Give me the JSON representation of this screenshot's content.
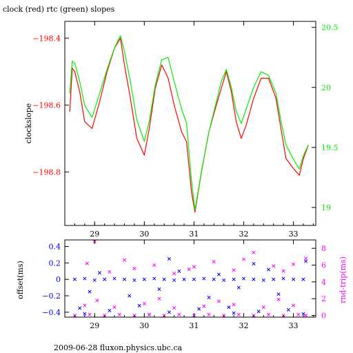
{
  "title": "clock (red) rtc (green) slopes",
  "footer": "2009-06-28 fluxon.physics.ubc.ca",
  "colors": {
    "clock": "#ff0000",
    "rtc": "#00ee00",
    "offset": "#0000ff",
    "rndtrip": "#ff00ff",
    "axis": "#000000"
  },
  "chart_data": [
    {
      "type": "line",
      "title": "clock (red) rtc (green) slopes",
      "ylabel": "clockslope",
      "xlim": [
        28.4,
        33.45
      ],
      "ylim": [
        -198.96,
        -198.35
      ],
      "y2lim": [
        18.85,
        20.55
      ],
      "x_ticks": [
        29,
        30,
        31,
        32,
        33
      ],
      "y_ticks": [
        -198.4,
        -198.6,
        -198.8
      ],
      "y_tick_labels": [
        "−198.4",
        "−198.6",
        "−198.8"
      ],
      "y2_ticks": [
        19,
        19.5,
        20,
        20.5
      ],
      "y2_tick_labels": [
        "19",
        "19.5",
        "20",
        "20.5"
      ],
      "series": [
        {
          "axis": "left",
          "color": "#ff0000",
          "points": [
            [
              28.5,
              -198.62
            ],
            [
              28.55,
              -198.49
            ],
            [
              28.6,
              -198.5
            ],
            [
              28.7,
              -198.56
            ],
            [
              28.8,
              -198.65
            ],
            [
              28.95,
              -198.67
            ],
            [
              29.1,
              -198.59
            ],
            [
              29.25,
              -198.5
            ],
            [
              29.4,
              -198.43
            ],
            [
              29.52,
              -198.4
            ],
            [
              29.6,
              -198.48
            ],
            [
              29.72,
              -198.58
            ],
            [
              29.85,
              -198.7
            ],
            [
              30.0,
              -198.75
            ],
            [
              30.1,
              -198.67
            ],
            [
              30.22,
              -198.55
            ],
            [
              30.35,
              -198.48
            ],
            [
              30.48,
              -198.52
            ],
            [
              30.6,
              -198.6
            ],
            [
              30.75,
              -198.68
            ],
            [
              30.85,
              -198.71
            ],
            [
              30.95,
              -198.86
            ],
            [
              31.02,
              -198.92
            ],
            [
              31.15,
              -198.8
            ],
            [
              31.3,
              -198.68
            ],
            [
              31.45,
              -198.6
            ],
            [
              31.55,
              -198.55
            ],
            [
              31.65,
              -198.5
            ],
            [
              31.75,
              -198.56
            ],
            [
              31.85,
              -198.65
            ],
            [
              31.95,
              -198.7
            ],
            [
              32.05,
              -198.66
            ],
            [
              32.2,
              -198.58
            ],
            [
              32.35,
              -198.52
            ],
            [
              32.5,
              -198.52
            ],
            [
              32.65,
              -198.58
            ],
            [
              32.75,
              -198.67
            ],
            [
              32.85,
              -198.76
            ],
            [
              33.0,
              -198.79
            ],
            [
              33.12,
              -198.81
            ],
            [
              33.2,
              -198.76
            ],
            [
              33.3,
              -198.72
            ]
          ]
        },
        {
          "axis": "right",
          "color": "#00ee00",
          "points": [
            [
              28.5,
              19.95
            ],
            [
              28.55,
              20.22
            ],
            [
              28.6,
              20.2
            ],
            [
              28.7,
              20.05
            ],
            [
              28.8,
              19.85
            ],
            [
              28.95,
              19.75
            ],
            [
              29.1,
              19.95
            ],
            [
              29.25,
              20.15
            ],
            [
              29.4,
              20.33
            ],
            [
              29.52,
              20.43
            ],
            [
              29.6,
              20.3
            ],
            [
              29.72,
              20.05
            ],
            [
              29.85,
              19.73
            ],
            [
              30.0,
              19.55
            ],
            [
              30.1,
              19.72
            ],
            [
              30.22,
              20.02
            ],
            [
              30.35,
              20.23
            ],
            [
              30.48,
              20.25
            ],
            [
              30.6,
              20.05
            ],
            [
              30.75,
              19.82
            ],
            [
              30.85,
              19.7
            ],
            [
              30.95,
              19.22
            ],
            [
              31.02,
              18.98
            ],
            [
              31.15,
              19.3
            ],
            [
              31.3,
              19.63
            ],
            [
              31.45,
              19.88
            ],
            [
              31.55,
              20.05
            ],
            [
              31.65,
              20.15
            ],
            [
              31.75,
              20.0
            ],
            [
              31.85,
              19.8
            ],
            [
              31.95,
              19.7
            ],
            [
              32.05,
              19.82
            ],
            [
              32.2,
              20.0
            ],
            [
              32.35,
              20.13
            ],
            [
              32.5,
              20.1
            ],
            [
              32.65,
              19.95
            ],
            [
              32.75,
              19.72
            ],
            [
              32.85,
              19.52
            ],
            [
              33.0,
              19.4
            ],
            [
              33.12,
              19.32
            ],
            [
              33.2,
              19.43
            ],
            [
              33.3,
              19.52
            ]
          ]
        }
      ]
    },
    {
      "type": "scatter",
      "ylabel": "offset(ms)",
      "y2label": "rnd-trip(ms)",
      "xlim": [
        28.4,
        33.45
      ],
      "ylim": [
        -0.46,
        0.48
      ],
      "y2lim": [
        -0.2,
        9.0
      ],
      "x_ticks": [
        29,
        30,
        31,
        32,
        33
      ],
      "y_ticks": [
        0.4,
        0.2,
        0,
        -0.2,
        -0.4
      ],
      "y_tick_labels": [
        "0.4",
        "0.2",
        "0",
        "−0.2",
        "−0.4"
      ],
      "y2_ticks": [
        0,
        2,
        4,
        6,
        8
      ],
      "y2_tick_labels": [
        "0",
        "2",
        "4",
        "6",
        "8"
      ],
      "series": [
        {
          "axis": "left",
          "color": "#0000ff",
          "marker": "x",
          "points": [
            [
              28.6,
              0.0
            ],
            [
              28.8,
              0.01
            ],
            [
              29.0,
              -0.01
            ],
            [
              29.2,
              0.0
            ],
            [
              29.4,
              0.01
            ],
            [
              29.6,
              0.0
            ],
            [
              29.8,
              -0.01
            ],
            [
              30.0,
              0.0
            ],
            [
              30.2,
              0.01
            ],
            [
              30.4,
              0.0
            ],
            [
              30.6,
              -0.01
            ],
            [
              30.8,
              0.0
            ],
            [
              31.0,
              0.0
            ],
            [
              31.2,
              0.01
            ],
            [
              31.4,
              0.0
            ],
            [
              31.6,
              -0.01
            ],
            [
              31.8,
              0.0
            ],
            [
              32.0,
              0.01
            ],
            [
              32.2,
              0.0
            ],
            [
              32.4,
              -0.01
            ],
            [
              32.6,
              0.0
            ],
            [
              32.8,
              0.01
            ],
            [
              33.0,
              0.0
            ],
            [
              33.2,
              0.0
            ],
            [
              28.7,
              -0.35
            ],
            [
              29.3,
              -0.38
            ],
            [
              29.9,
              -0.32
            ],
            [
              30.5,
              -0.4
            ],
            [
              31.1,
              -0.36
            ],
            [
              31.7,
              -0.34
            ],
            [
              32.3,
              -0.39
            ],
            [
              32.9,
              -0.37
            ],
            [
              28.9,
              -0.15
            ],
            [
              29.7,
              -0.2
            ],
            [
              30.3,
              -0.12
            ],
            [
              31.3,
              -0.22
            ],
            [
              31.9,
              -0.1
            ],
            [
              32.7,
              -0.18
            ],
            [
              29.1,
              0.08
            ],
            [
              30.7,
              0.1
            ],
            [
              31.5,
              0.06
            ],
            [
              32.5,
              0.12
            ],
            [
              28.8,
              -0.42
            ],
            [
              30.1,
              -0.43
            ],
            [
              31.8,
              -0.41
            ],
            [
              33.2,
              -0.42
            ],
            [
              30.5,
              0.25
            ],
            [
              32.2,
              0.19
            ],
            [
              33.25,
              0.22
            ]
          ]
        },
        {
          "axis": "right",
          "color": "#ff00ff",
          "marker": "x",
          "points": [
            [
              28.6,
              0.0
            ],
            [
              28.9,
              0.1
            ],
            [
              29.2,
              0.0
            ],
            [
              29.5,
              0.1
            ],
            [
              29.8,
              0.0
            ],
            [
              30.1,
              0.1
            ],
            [
              30.4,
              0.0
            ],
            [
              30.7,
              0.1
            ],
            [
              31.0,
              0.0
            ],
            [
              31.3,
              0.1
            ],
            [
              31.6,
              0.0
            ],
            [
              31.9,
              0.1
            ],
            [
              32.2,
              0.0
            ],
            [
              32.5,
              0.1
            ],
            [
              32.8,
              0.0
            ],
            [
              33.1,
              0.1
            ],
            [
              33.25,
              0.0
            ],
            [
              28.8,
              1.2
            ],
            [
              29.4,
              1.0
            ],
            [
              30.0,
              1.4
            ],
            [
              30.6,
              0.9
            ],
            [
              31.2,
              1.1
            ],
            [
              31.8,
              1.3
            ],
            [
              32.4,
              1.0
            ],
            [
              33.0,
              1.2
            ],
            [
              29.05,
              1.8
            ],
            [
              30.3,
              2.0
            ],
            [
              31.5,
              1.7
            ],
            [
              32.7,
              1.9
            ],
            [
              29.0,
              8.8
            ],
            [
              28.85,
              6.2
            ],
            [
              29.6,
              6.6
            ],
            [
              29.8,
              5.6
            ],
            [
              30.2,
              6.0
            ],
            [
              30.6,
              5.0
            ],
            [
              31.0,
              5.8
            ],
            [
              31.4,
              6.4
            ],
            [
              31.8,
              5.4
            ],
            [
              32.0,
              6.7
            ],
            [
              32.2,
              7.5
            ],
            [
              32.6,
              5.9
            ],
            [
              33.0,
              6.1
            ],
            [
              33.25,
              6.8
            ],
            [
              29.3,
              5.2
            ],
            [
              30.9,
              5.5
            ],
            [
              32.8,
              5.3
            ]
          ]
        }
      ]
    }
  ]
}
